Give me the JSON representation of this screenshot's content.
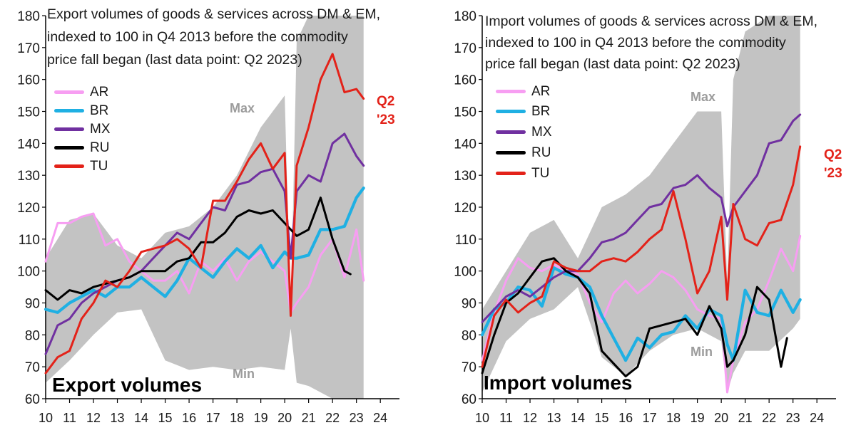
{
  "chart_data": [
    {
      "type": "line",
      "panel_label": "Export volumes",
      "title_lines": [
        "Export volumes of goods & services across DM & EM,",
        "indexed to 100 in Q4 2013 before the commodity",
        "price fall began (last data point: Q2 2023)"
      ],
      "title": "Export volumes of goods & services across DM & EM, indexed to 100 in Q4 2013 before the commodity price fall began (last data point: Q2 2023)",
      "ylim": [
        60,
        180
      ],
      "yticks": [
        "60",
        "70",
        "80",
        "90",
        "100",
        "110",
        "120",
        "130",
        "140",
        "150",
        "160",
        "170",
        "180"
      ],
      "xlim": [
        10,
        24.8
      ],
      "xticks": [
        "10",
        "11",
        "12",
        "13",
        "14",
        "15",
        "16",
        "17",
        "18",
        "19",
        "20",
        "21",
        "22",
        "23",
        "24"
      ],
      "band_labels": {
        "max": "Max",
        "min": "Min"
      },
      "callout": [
        "Q2",
        "'23"
      ],
      "band": {
        "x": [
          10,
          11,
          12,
          13,
          14,
          15,
          16,
          17,
          18,
          19,
          20,
          20.25,
          20.5,
          21,
          22,
          23,
          23.3
        ],
        "max": [
          104,
          116,
          118,
          108,
          104,
          112,
          114,
          120,
          130,
          145,
          155,
          86,
          172,
          180,
          180,
          180,
          180
        ],
        "min": [
          65,
          72,
          80,
          87,
          88,
          72,
          69,
          70,
          69,
          70,
          69,
          82,
          65,
          64,
          60,
          60,
          60
        ]
      },
      "series": [
        {
          "name": "AR",
          "color": "#f79ef2",
          "x": [
            10,
            10.5,
            11,
            11.5,
            12,
            12.5,
            13,
            13.5,
            14,
            14.5,
            15,
            15.5,
            16,
            16.5,
            17,
            17.5,
            18,
            18.5,
            19,
            19.5,
            20,
            20.25,
            20.5,
            21,
            21.5,
            22,
            22.5,
            23,
            23.3
          ],
          "values": [
            103,
            115,
            115,
            117,
            118,
            108,
            110,
            103,
            100,
            97,
            97,
            100,
            93,
            103,
            100,
            104,
            97,
            103,
            106,
            103,
            100,
            87,
            90,
            95,
            105,
            110,
            98,
            113,
            97
          ]
        },
        {
          "name": "BR",
          "color": "#1fb0e3",
          "x": [
            10,
            10.5,
            11,
            11.5,
            12,
            12.5,
            13,
            13.5,
            14,
            14.5,
            15,
            15.5,
            16,
            16.5,
            17,
            17.5,
            18,
            18.5,
            19,
            19.5,
            20,
            20.25,
            20.5,
            21,
            21.5,
            22,
            22.5,
            23,
            23.3
          ],
          "values": [
            88,
            87,
            90,
            92,
            94,
            92,
            95,
            95,
            98,
            95,
            92,
            97,
            104,
            101,
            98,
            103,
            107,
            104,
            108,
            101,
            106,
            104,
            104,
            105,
            113,
            113,
            114,
            123,
            126
          ]
        },
        {
          "name": "MX",
          "color": "#7030a0",
          "x": [
            10,
            10.5,
            11,
            11.5,
            12,
            12.5,
            13,
            13.5,
            14,
            14.5,
            15,
            15.5,
            16,
            16.5,
            17,
            17.5,
            18,
            18.5,
            19,
            19.5,
            20,
            20.25,
            20.5,
            21,
            21.5,
            22,
            22.5,
            23,
            23.3
          ],
          "values": [
            74,
            83,
            85,
            90,
            93,
            95,
            97,
            98,
            100,
            104,
            108,
            112,
            110,
            115,
            120,
            119,
            127,
            128,
            131,
            132,
            125,
            104,
            125,
            130,
            128,
            140,
            143,
            136,
            133
          ]
        },
        {
          "name": "RU",
          "color": "#000000",
          "x": [
            10,
            10.5,
            11,
            11.5,
            12,
            12.5,
            13,
            13.5,
            14,
            14.5,
            15,
            15.5,
            16,
            16.5,
            17,
            17.5,
            18,
            18.5,
            19,
            19.5,
            20,
            20.5,
            21,
            21.5,
            22,
            22.5,
            22.75
          ],
          "values": [
            94,
            91,
            94,
            93,
            95,
            96,
            97,
            98,
            100,
            100,
            100,
            103,
            104,
            109,
            109,
            112,
            117,
            119,
            118,
            119,
            115,
            111,
            113,
            123,
            110,
            100,
            99
          ]
        },
        {
          "name": "TU",
          "color": "#e32219",
          "x": [
            10,
            10.5,
            11,
            11.5,
            12,
            12.5,
            13,
            13.5,
            14,
            14.5,
            15,
            15.5,
            16,
            16.5,
            17,
            17.5,
            18,
            18.5,
            19,
            19.5,
            20,
            20.25,
            20.5,
            21,
            21.5,
            22,
            22.5,
            23,
            23.3
          ],
          "values": [
            68,
            73,
            75,
            85,
            90,
            97,
            95,
            100,
            106,
            107,
            108,
            110,
            107,
            101,
            122,
            122,
            128,
            135,
            140,
            132,
            137,
            86,
            133,
            145,
            160,
            168,
            156,
            157,
            154
          ]
        }
      ]
    },
    {
      "type": "line",
      "panel_label": "Import volumes",
      "title_lines": [
        "Import volumes of goods & services across DM & EM,",
        "indexed to 100 in Q4 2013 before the commodity",
        "price fall began (last data point: Q2 2023)"
      ],
      "title": "Import volumes of goods & services across DM & EM, indexed to 100 in Q4 2013 before the commodity price fall began (last data point: Q2 2023)",
      "ylim": [
        60,
        180
      ],
      "yticks": [
        "60",
        "70",
        "80",
        "90",
        "100",
        "110",
        "120",
        "130",
        "140",
        "150",
        "160",
        "170",
        "180"
      ],
      "xlim": [
        10,
        24.8
      ],
      "xticks": [
        "10",
        "11",
        "12",
        "13",
        "14",
        "15",
        "16",
        "17",
        "18",
        "19",
        "20",
        "21",
        "22",
        "23",
        "24"
      ],
      "band_labels": {
        "max": "Max",
        "min": "Min"
      },
      "callout": [
        "Q2",
        "'23"
      ],
      "band": {
        "x": [
          10,
          11,
          12,
          13,
          14,
          15,
          16,
          17,
          18,
          19,
          20,
          20.25,
          20.5,
          21,
          22,
          23,
          23.3
        ],
        "max": [
          88,
          100,
          112,
          116,
          104,
          120,
          124,
          130,
          140,
          150,
          150,
          96,
          160,
          175,
          180,
          180,
          180
        ],
        "min": [
          62,
          78,
          85,
          88,
          95,
          73,
          67,
          75,
          80,
          82,
          78,
          62,
          68,
          75,
          75,
          82,
          85
        ]
      },
      "series": [
        {
          "name": "AR",
          "color": "#f79ef2",
          "x": [
            10,
            10.5,
            11,
            11.5,
            12,
            12.5,
            13,
            13.5,
            14,
            14.5,
            15,
            15.5,
            16,
            16.5,
            17,
            17.5,
            18,
            18.5,
            19,
            19.5,
            20,
            20.25,
            20.5,
            21,
            21.5,
            22,
            22.5,
            23,
            23.3
          ],
          "values": [
            72,
            87,
            97,
            104,
            101,
            100,
            102,
            100,
            99,
            90,
            84,
            93,
            97,
            93,
            96,
            100,
            98,
            94,
            88,
            86,
            85,
            62,
            72,
            84,
            88,
            97,
            107,
            100,
            111
          ]
        },
        {
          "name": "BR",
          "color": "#1fb0e3",
          "x": [
            10,
            10.5,
            11,
            11.5,
            12,
            12.5,
            13,
            13.5,
            14,
            14.5,
            15,
            15.5,
            16,
            16.5,
            17,
            17.5,
            18,
            18.5,
            19,
            19.5,
            20,
            20.25,
            20.5,
            21,
            21.5,
            22,
            22.5,
            23,
            23.3
          ],
          "values": [
            80,
            88,
            90,
            95,
            94,
            89,
            101,
            99,
            98,
            95,
            86,
            79,
            72,
            79,
            76,
            80,
            81,
            86,
            82,
            88,
            86,
            77,
            72,
            94,
            87,
            86,
            94,
            87,
            91
          ]
        },
        {
          "name": "MX",
          "color": "#7030a0",
          "x": [
            10,
            10.5,
            11,
            11.5,
            12,
            12.5,
            13,
            13.5,
            14,
            14.5,
            15,
            15.5,
            16,
            16.5,
            17,
            17.5,
            18,
            18.5,
            19,
            19.5,
            20,
            20.25,
            20.5,
            21,
            21.5,
            22,
            22.5,
            23,
            23.3
          ],
          "values": [
            84,
            88,
            92,
            94,
            92,
            95,
            98,
            100,
            100,
            104,
            109,
            110,
            112,
            116,
            120,
            121,
            126,
            127,
            130,
            126,
            123,
            114,
            120,
            125,
            130,
            140,
            141,
            147,
            149
          ]
        },
        {
          "name": "RU",
          "color": "#000000",
          "x": [
            10,
            10.5,
            11,
            11.5,
            12,
            12.5,
            13,
            13.5,
            14,
            14.5,
            15,
            15.5,
            16,
            16.5,
            17,
            17.5,
            18,
            18.5,
            19,
            19.5,
            20,
            20.25,
            20.5,
            21,
            21.5,
            22,
            22.5,
            22.75
          ],
          "values": [
            68,
            80,
            90,
            93,
            98,
            103,
            104,
            100,
            98,
            93,
            75,
            71,
            67,
            70,
            82,
            83,
            84,
            85,
            80,
            89,
            82,
            70,
            72,
            80,
            95,
            91,
            70,
            79
          ]
        },
        {
          "name": "TU",
          "color": "#e32219",
          "x": [
            10,
            10.5,
            11,
            11.5,
            12,
            12.5,
            13,
            13.5,
            14,
            14.5,
            15,
            15.5,
            16,
            16.5,
            17,
            17.5,
            18,
            18.5,
            19,
            19.5,
            20,
            20.25,
            20.5,
            21,
            21.5,
            22,
            22.5,
            23,
            23.3
          ],
          "values": [
            70,
            86,
            91,
            87,
            90,
            92,
            103,
            101,
            100,
            100,
            103,
            104,
            103,
            106,
            110,
            113,
            125,
            110,
            93,
            100,
            117,
            91,
            121,
            110,
            108,
            115,
            116,
            127,
            139
          ]
        }
      ]
    }
  ]
}
